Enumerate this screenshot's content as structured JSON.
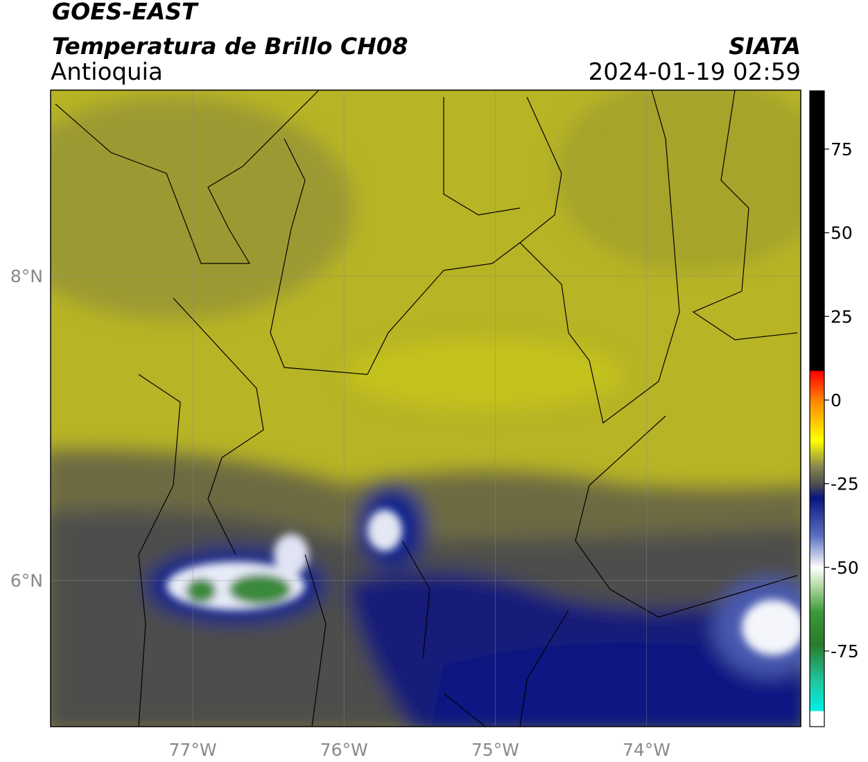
{
  "header": {
    "title": "GOES-EAST",
    "subtitle": "Temperatura de Brillo CH08",
    "region": "Antioquia",
    "source": "SIATA",
    "timestamp": "2024-01-19 02:59"
  },
  "map": {
    "lon_range": [
      -77.94,
      -72.98
    ],
    "lat_range": [
      5.04,
      9.22
    ],
    "lon_ticks": [
      {
        "value": -77,
        "label": "77°W"
      },
      {
        "value": -76,
        "label": "76°W"
      },
      {
        "value": -75,
        "label": "75°W"
      },
      {
        "value": -74,
        "label": "74°W"
      }
    ],
    "lat_ticks": [
      {
        "value": 8,
        "label": "8°N"
      },
      {
        "value": 6,
        "label": "6°N"
      }
    ],
    "colorbar": {
      "range": [
        -97.6,
        92.4
      ],
      "ticks": [
        75,
        50,
        25,
        0,
        -25,
        -50,
        -75
      ]
    }
  }
}
